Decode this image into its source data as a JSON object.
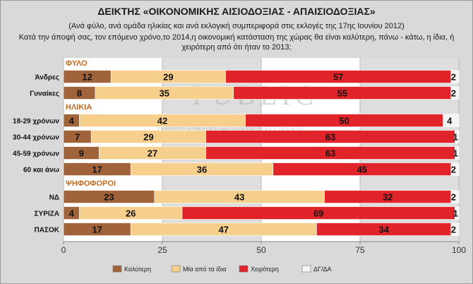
{
  "header": {
    "title": "ΔΕΙΚΤΗΣ «ΟΙΚΟΝΟΜΙΚΗΣ ΑΙΣΙΟΔΟΞΙΑΣ - ΑΠΑΙΣΙΟΔΟΞΙΑΣ»",
    "subtitle": "(Ανά φύλο, ανά ομάδα ηλικίας και ανά εκλογική συμπεριφορά στις εκλογές της 17ης Ιουνίου 2012)",
    "question": "Κατά την άποψή σας, τον επόμενο χρόνο,το 2014,η οικονομική κατάσταση της χώρας θα είναι καλύτερη, πάνω - κάτω, η ίδια, ή χειρότερη από ότι ήταν το 2013;"
  },
  "watermark": {
    "logo": "PUBLIC",
    "line": "RESEARCH & CONSULTING"
  },
  "colors": {
    "better": "#a0633a",
    "same": "#f6cf8c",
    "worse": "#e0242a",
    "dk": "#f4f4f4",
    "section": "#c06a1e"
  },
  "chart_data": {
    "type": "bar",
    "orientation": "horizontal",
    "stacked": true,
    "xlim": [
      0,
      100
    ],
    "xticks": [
      0,
      25,
      50,
      75,
      100
    ],
    "series": [
      {
        "key": "better",
        "name": "Καλύτερη"
      },
      {
        "key": "same",
        "name": "Μία από τα ίδια"
      },
      {
        "key": "worse",
        "name": "Χειρότερη"
      },
      {
        "key": "dk",
        "name": "ΔΓ/ΔΑ"
      }
    ],
    "sections": [
      {
        "label": "ΦΥΛΟ",
        "rows": [
          {
            "label": "Άνδρες",
            "values": [
              12,
              29,
              57,
              2
            ]
          },
          {
            "label": "Γυναίκες",
            "values": [
              8,
              35,
              55,
              2
            ]
          }
        ]
      },
      {
        "label": "ΗΛΙΚΙΑ",
        "rows": [
          {
            "label": "18-29 χρόνων",
            "values": [
              4,
              42,
              50,
              4
            ]
          },
          {
            "label": "30-44 χρόνων",
            "values": [
              7,
              29,
              63,
              1
            ]
          },
          {
            "label": "45-59 χρόνων",
            "values": [
              9,
              27,
              63,
              1
            ]
          },
          {
            "label": "60 και άνω",
            "values": [
              17,
              36,
              45,
              2
            ]
          }
        ]
      },
      {
        "label": "ΨΗΦΟΦΟΡΟΙ",
        "rows": [
          {
            "label": "ΝΔ",
            "values": [
              23,
              43,
              32,
              2
            ]
          },
          {
            "label": "ΣΥΡΙΖΑ",
            "values": [
              4,
              26,
              69,
              1
            ]
          },
          {
            "label": "ΠΑΣΟΚ",
            "values": [
              17,
              47,
              34,
              2
            ]
          }
        ]
      }
    ]
  }
}
